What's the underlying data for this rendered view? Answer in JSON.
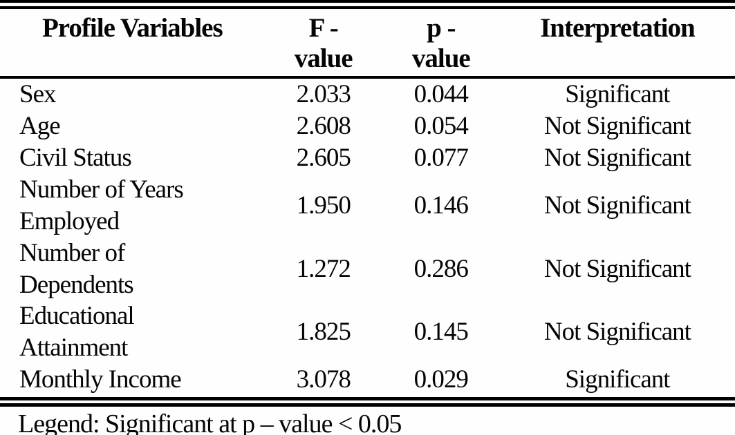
{
  "table": {
    "headers": {
      "variables": "Profile Variables",
      "f": "F -\nvalue",
      "p": "p -\nvalue",
      "interpretation": "Interpretation"
    },
    "rows": [
      {
        "variable": "Sex",
        "f": "2.033",
        "p": "0.044",
        "interpretation": "Significant"
      },
      {
        "variable": "Age",
        "f": "2.608",
        "p": "0.054",
        "interpretation": "Not Significant"
      },
      {
        "variable": "Civil Status",
        "f": "2.605",
        "p": "0.077",
        "interpretation": "Not Significant"
      },
      {
        "variable": "Number of Years Employed",
        "f": "1.950",
        "p": "0.146",
        "interpretation": "Not Significant"
      },
      {
        "variable": "Number of Dependents",
        "f": "1.272",
        "p": "0.286",
        "interpretation": "Not Significant"
      },
      {
        "variable": "Educational Attainment",
        "f": "1.825",
        "p": "0.145",
        "interpretation": "Not Significant"
      },
      {
        "variable": "Monthly Income",
        "f": "3.078",
        "p": "0.029",
        "interpretation": "Significant"
      }
    ],
    "legend": "Legend: Significant at p – value < 0.05"
  },
  "colors": {
    "background": "#fefefe",
    "text": "#050505",
    "border": "#000000"
  }
}
